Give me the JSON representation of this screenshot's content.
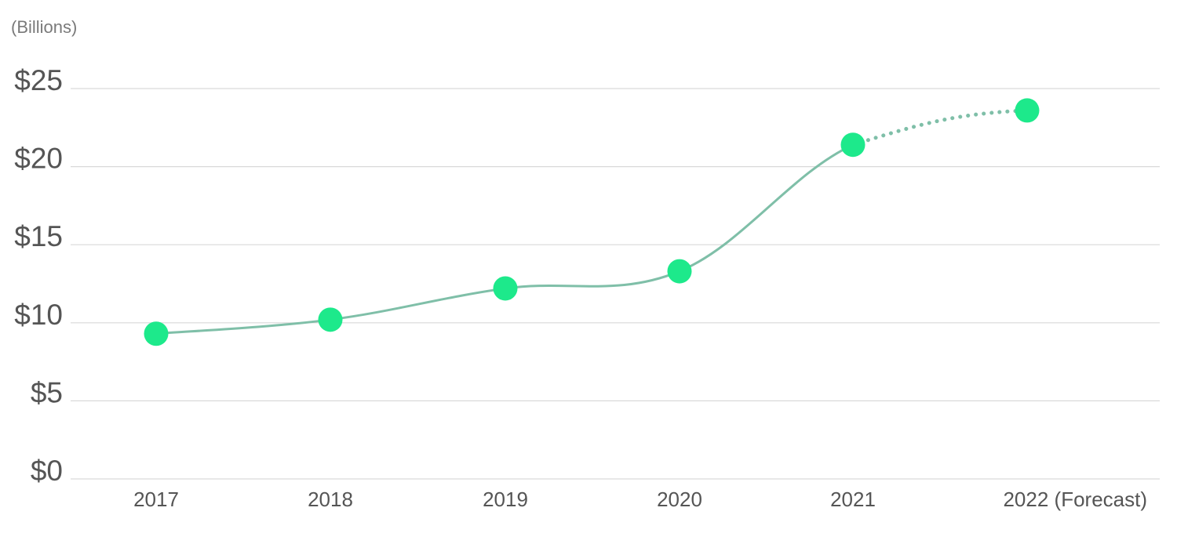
{
  "chart_data": {
    "type": "line",
    "unit_label": "(Billions)",
    "categories": [
      "2017",
      "2018",
      "2019",
      "2020",
      "2021",
      "2022 (Forecast)"
    ],
    "values": [
      9.3,
      10.2,
      12.2,
      13.3,
      21.4,
      23.6
    ],
    "forecast_from_index": 4,
    "y_ticks": [
      "$0",
      "$5",
      "$10",
      "$15",
      "$20",
      "$25"
    ],
    "y_tick_values": [
      0,
      5,
      10,
      15,
      20,
      25
    ],
    "ylim": [
      0,
      25
    ],
    "grid": true,
    "colors": {
      "line": "#7fbfa8",
      "marker": "#1de98b",
      "grid": "#d9d9d9",
      "text": "#555555"
    }
  }
}
